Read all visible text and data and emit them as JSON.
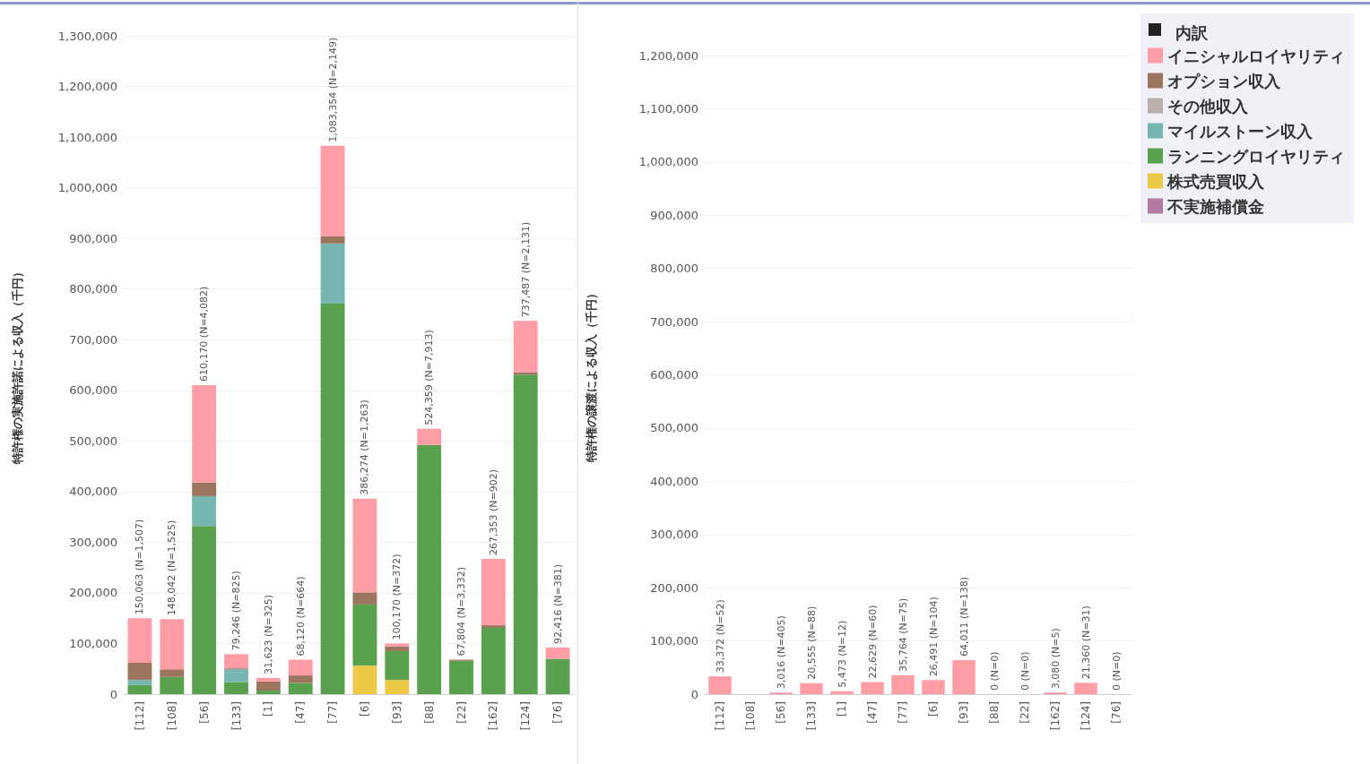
{
  "chart_data": [
    {
      "type": "bar",
      "ylabel": "特許権の実施許諾による収入（千円）",
      "categories": [
        "[112]",
        "[108]",
        "[56]",
        "[133]",
        "[1]",
        "[47]",
        "[77]",
        "[6]",
        "[93]",
        "[88]",
        "[22]",
        "[162]",
        "[124]",
        "[76]"
      ],
      "stacked": true,
      "series": [
        {
          "color": "#edc948",
          "values": [
            null,
            null,
            null,
            null,
            null,
            null,
            null,
            56000,
            28000,
            null,
            null,
            null,
            null,
            null
          ]
        },
        {
          "color": "#59a14f",
          "values": [
            18000,
            34000,
            332000,
            24000,
            7000,
            22000,
            771000,
            121000,
            57000,
            492000,
            66000,
            131000,
            631000,
            70000
          ]
        },
        {
          "color": "#76b7b2",
          "values": [
            10000,
            null,
            59000,
            25000,
            null,
            null,
            119000,
            null,
            null,
            null,
            null,
            null,
            null,
            null
          ]
        },
        {
          "color": "#9c755f",
          "values": [
            34000,
            15000,
            27000,
            2000,
            18000,
            15000,
            14000,
            24000,
            9000,
            null,
            2000,
            5000,
            5000,
            null
          ]
        },
        {
          "color": "#ff9da7",
          "values": [
            88000,
            99000,
            192000,
            28000,
            7000,
            31000,
            179000,
            185000,
            6000,
            32000,
            null,
            131000,
            101000,
            22000
          ]
        }
      ],
      "totals": [
        "150,063 (N=1,507)",
        "148,042 (N=1,525)",
        "610,170 (N=4,082)",
        "79,246 (N=825)",
        "31,623 (N=325)",
        "68,120 (N=664)",
        "1,083,354 (N=2,149)",
        "386,274 (N=1,263)",
        "100,170 (N=372)",
        "524,359 (N=7,913)",
        "67,804 (N=3,332)",
        "267,353 (N=902)",
        "737,487 (N=2,131)",
        "92,416 (N=381)"
      ],
      "ylim": [
        0,
        1300000
      ],
      "yticks": [
        {
          "value": 0,
          "label": "0"
        },
        {
          "value": 100000,
          "label": "100,000"
        },
        {
          "value": 200000,
          "label": "200,000"
        },
        {
          "value": 300000,
          "label": "300,000"
        },
        {
          "value": 400000,
          "label": "400,000"
        },
        {
          "value": 500000,
          "label": "500,000"
        },
        {
          "value": 600000,
          "label": "600,000"
        },
        {
          "value": 700000,
          "label": "700,000"
        },
        {
          "value": 800000,
          "label": "800,000"
        },
        {
          "value": 900000,
          "label": "900,000"
        },
        {
          "value": 1000000,
          "label": "1,000,000"
        },
        {
          "value": 1100000,
          "label": "1,100,000"
        },
        {
          "value": 1200000,
          "label": "1,200,000"
        },
        {
          "value": 1300000,
          "label": "1,300,000"
        }
      ],
      "grid": "y"
    },
    {
      "type": "bar",
      "ylabel": "特許権の譲渡による収入（千円）",
      "legend_title": "内訳",
      "categories": [
        "[112]",
        "[108]",
        "[56]",
        "[133]",
        "[1]",
        "[47]",
        "[77]",
        "[6]",
        "[93]",
        "[88]",
        "[22]",
        "[162]",
        "[124]",
        "[76]"
      ],
      "stacked": true,
      "series": [
        {
          "name": "イニシャルロイヤリティ",
          "color": "#ff9da7",
          "values": [
            33372,
            null,
            3016,
            20555,
            5473,
            22629,
            35764,
            26491,
            64011,
            0,
            0,
            3080,
            21360,
            0
          ]
        },
        {
          "name": "オプション収入",
          "color": "#9c755f",
          "values": [
            null,
            null,
            null,
            null,
            null,
            null,
            null,
            null,
            null,
            null,
            null,
            null,
            null,
            null
          ]
        },
        {
          "name": "その他収入",
          "color": "#bab0ac",
          "values": [
            null,
            null,
            null,
            null,
            null,
            null,
            null,
            null,
            null,
            null,
            null,
            null,
            null,
            null
          ]
        },
        {
          "name": "マイルストーン収入",
          "color": "#76b7b2",
          "values": [
            null,
            null,
            null,
            null,
            null,
            null,
            null,
            null,
            null,
            null,
            null,
            null,
            null,
            null
          ]
        },
        {
          "name": "ランニングロイヤリティ",
          "color": "#59a14f",
          "values": [
            null,
            null,
            null,
            null,
            null,
            null,
            null,
            null,
            null,
            null,
            null,
            null,
            null,
            null
          ]
        },
        {
          "name": "株式売買収入",
          "color": "#edc948",
          "values": [
            null,
            null,
            null,
            null,
            null,
            null,
            null,
            null,
            null,
            null,
            null,
            null,
            null,
            null
          ]
        },
        {
          "name": "不実施補償金",
          "color": "#b07aa1",
          "values": [
            null,
            null,
            null,
            null,
            null,
            null,
            null,
            null,
            null,
            null,
            null,
            null,
            null,
            null
          ]
        }
      ],
      "totals": [
        "33,372 (N=52)",
        null,
        "3,016 (N=405)",
        "20,555 (N=88)",
        "5,473 (N=12)",
        "22,629 (N=60)",
        "35,764 (N=75)",
        "26,491 (N=104)",
        "64,011 (N=138)",
        "0 (N=0)",
        "0 (N=0)",
        "3,080 (N=5)",
        "21,360 (N=31)",
        "0 (N=0)"
      ],
      "ylim": [
        0,
        1200000
      ],
      "yticks": [
        {
          "value": 0,
          "label": "0"
        },
        {
          "value": 100000,
          "label": "100,000"
        },
        {
          "value": 200000,
          "label": "200,000"
        },
        {
          "value": 300000,
          "label": "300,000"
        },
        {
          "value": 400000,
          "label": "400,000"
        },
        {
          "value": 500000,
          "label": "500,000"
        },
        {
          "value": 600000,
          "label": "600,000"
        },
        {
          "value": 700000,
          "label": "700,000"
        },
        {
          "value": 800000,
          "label": "800,000"
        },
        {
          "value": 900000,
          "label": "900,000"
        },
        {
          "value": 1000000,
          "label": "1,000,000"
        },
        {
          "value": 1100000,
          "label": "1,100,000"
        },
        {
          "value": 1200000,
          "label": "1,200,000"
        }
      ],
      "grid": "y",
      "legend": "top right"
    }
  ]
}
